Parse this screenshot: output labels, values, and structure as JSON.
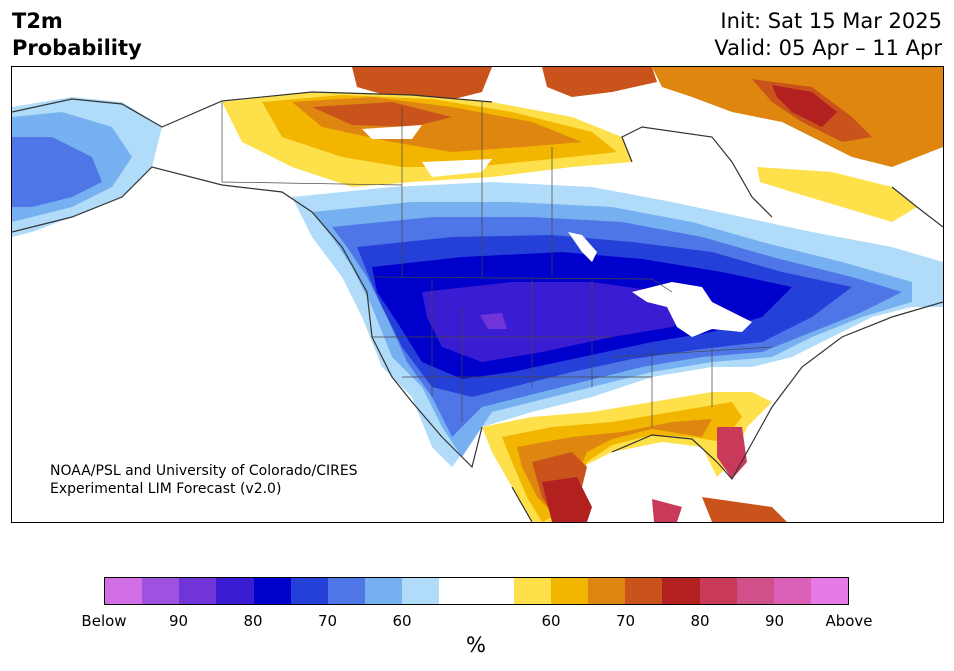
{
  "header": {
    "variable": "T2m",
    "product": "Probability",
    "init": "Init: Sat 15 Mar 2025",
    "valid": "Valid: 05 Apr – 11 Apr"
  },
  "map": {
    "credit_line1": "NOAA/PSL and University of Colorado/CIRES",
    "credit_line2": "Experimental LIM Forecast (v2.0)"
  },
  "legend": {
    "colors": [
      "#d36fe6",
      "#9f52e0",
      "#7034d8",
      "#3a1dd2",
      "#0000cc",
      "#2540d8",
      "#4f76e6",
      "#76b0f0",
      "#b0dcfa",
      "#ffffff",
      "#ffffff",
      "#fde04a",
      "#f2b600",
      "#de8610",
      "#c9531a",
      "#b22020",
      "#c93a5a",
      "#d0508a",
      "#dc60b8",
      "#e87ae6"
    ],
    "ticks": [
      "Below",
      "90",
      "80",
      "70",
      "60",
      "60",
      "70",
      "80",
      "90",
      "Above"
    ],
    "unit": "%"
  }
}
